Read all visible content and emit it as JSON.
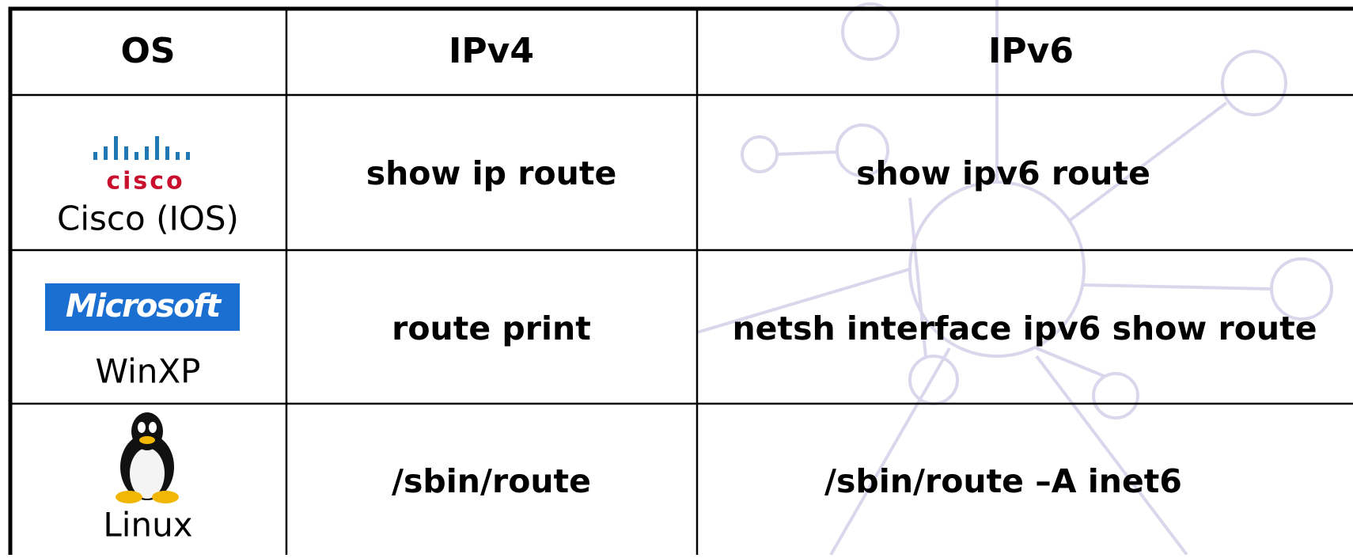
{
  "table": {
    "header": [
      "OS",
      "IPv4",
      "IPv6"
    ],
    "rows": [
      [
        "Cisco (IOS)",
        "show ip route",
        "show ipv6 route"
      ],
      [
        "WinXP",
        "route print",
        "netsh interface ipv6 show route"
      ],
      [
        "Linux",
        "/sbin/route",
        "/sbin/route –A inet6"
      ]
    ],
    "logos": {
      "cisco": "cisco",
      "microsoft": "Microsoft"
    }
  }
}
